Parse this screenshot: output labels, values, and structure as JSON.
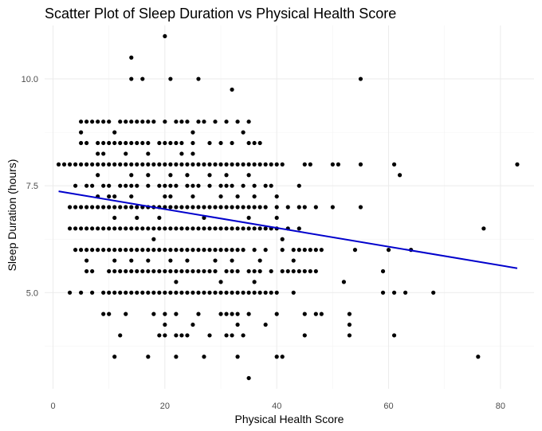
{
  "chart_data": {
    "type": "scatter",
    "title": "Scatter Plot of Sleep Duration vs Physical Health Score",
    "xlabel": "Physical Health Score",
    "ylabel": "Sleep Duration (hours)",
    "xlim": [
      -1.5,
      86
    ],
    "ylim": [
      2.75,
      11.25
    ],
    "x_ticks": [
      0,
      20,
      40,
      60,
      80
    ],
    "y_ticks": [
      5.0,
      7.5,
      10.0
    ],
    "y_tick_labels": [
      "5.0",
      "7.5",
      "10.0"
    ],
    "grid": true,
    "legend": "none",
    "point_color": "#000000",
    "trend_color": "#0000cc",
    "trend_line": {
      "x": [
        1,
        83
      ],
      "y": [
        7.37,
        5.57
      ]
    },
    "points": [
      [
        20,
        11
      ],
      [
        14,
        10.5
      ],
      [
        14,
        10
      ],
      [
        16,
        10
      ],
      [
        21,
        10
      ],
      [
        26,
        10
      ],
      [
        55,
        10
      ],
      [
        32,
        9.75
      ],
      [
        5,
        9
      ],
      [
        6,
        9
      ],
      [
        7,
        9
      ],
      [
        8,
        9
      ],
      [
        9,
        9
      ],
      [
        10,
        9
      ],
      [
        12,
        9
      ],
      [
        13,
        9
      ],
      [
        14,
        9
      ],
      [
        15,
        9
      ],
      [
        16,
        9
      ],
      [
        17,
        9
      ],
      [
        18,
        9
      ],
      [
        20,
        9
      ],
      [
        22,
        9
      ],
      [
        23,
        9
      ],
      [
        24,
        9
      ],
      [
        26,
        9
      ],
      [
        27,
        9
      ],
      [
        29,
        9
      ],
      [
        31,
        9
      ],
      [
        33,
        9
      ],
      [
        35,
        9
      ],
      [
        5,
        8.75
      ],
      [
        11,
        8.75
      ],
      [
        25,
        8.75
      ],
      [
        34,
        8.75
      ],
      [
        5,
        8.5
      ],
      [
        6,
        8.5
      ],
      [
        8,
        8.5
      ],
      [
        9,
        8.5
      ],
      [
        10,
        8.5
      ],
      [
        11,
        8.5
      ],
      [
        12,
        8.5
      ],
      [
        13,
        8.5
      ],
      [
        14,
        8.5
      ],
      [
        15,
        8.5
      ],
      [
        16,
        8.5
      ],
      [
        17,
        8.5
      ],
      [
        19,
        8.5
      ],
      [
        20,
        8.5
      ],
      [
        21,
        8.5
      ],
      [
        22,
        8.5
      ],
      [
        23,
        8.5
      ],
      [
        25,
        8.5
      ],
      [
        28,
        8.5
      ],
      [
        30,
        8.5
      ],
      [
        32,
        8.5
      ],
      [
        35,
        8.5
      ],
      [
        36,
        8.5
      ],
      [
        37,
        8.5
      ],
      [
        8,
        8.25
      ],
      [
        9,
        8.25
      ],
      [
        13,
        8.25
      ],
      [
        17,
        8.25
      ],
      [
        23,
        8.25
      ],
      [
        25,
        8.25
      ],
      [
        1,
        8
      ],
      [
        2,
        8
      ],
      [
        3,
        8
      ],
      [
        4,
        8
      ],
      [
        5,
        8
      ],
      [
        6,
        8
      ],
      [
        7,
        8
      ],
      [
        8,
        8
      ],
      [
        9,
        8
      ],
      [
        10,
        8
      ],
      [
        11,
        8
      ],
      [
        12,
        8
      ],
      [
        13,
        8
      ],
      [
        14,
        8
      ],
      [
        15,
        8
      ],
      [
        16,
        8
      ],
      [
        17,
        8
      ],
      [
        18,
        8
      ],
      [
        19,
        8
      ],
      [
        20,
        8
      ],
      [
        21,
        8
      ],
      [
        22,
        8
      ],
      [
        23,
        8
      ],
      [
        24,
        8
      ],
      [
        25,
        8
      ],
      [
        26,
        8
      ],
      [
        27,
        8
      ],
      [
        28,
        8
      ],
      [
        29,
        8
      ],
      [
        30,
        8
      ],
      [
        31,
        8
      ],
      [
        32,
        8
      ],
      [
        33,
        8
      ],
      [
        34,
        8
      ],
      [
        35,
        8
      ],
      [
        36,
        8
      ],
      [
        37,
        8
      ],
      [
        38,
        8
      ],
      [
        39,
        8
      ],
      [
        40,
        8
      ],
      [
        41,
        8
      ],
      [
        45,
        8
      ],
      [
        46,
        8
      ],
      [
        50,
        8
      ],
      [
        51,
        8
      ],
      [
        55,
        8
      ],
      [
        61,
        8
      ],
      [
        83,
        8
      ],
      [
        8,
        7.75
      ],
      [
        14,
        7.75
      ],
      [
        17,
        7.75
      ],
      [
        21,
        7.75
      ],
      [
        24,
        7.75
      ],
      [
        28,
        7.75
      ],
      [
        31,
        7.75
      ],
      [
        35,
        7.75
      ],
      [
        62,
        7.75
      ],
      [
        4,
        7.5
      ],
      [
        6,
        7.5
      ],
      [
        7,
        7.5
      ],
      [
        9,
        7.5
      ],
      [
        10,
        7.5
      ],
      [
        12,
        7.5
      ],
      [
        13,
        7.5
      ],
      [
        14,
        7.5
      ],
      [
        15,
        7.5
      ],
      [
        17,
        7.5
      ],
      [
        19,
        7.5
      ],
      [
        20,
        7.5
      ],
      [
        21,
        7.5
      ],
      [
        22,
        7.5
      ],
      [
        24,
        7.5
      ],
      [
        25,
        7.5
      ],
      [
        26,
        7.5
      ],
      [
        28,
        7.5
      ],
      [
        30,
        7.5
      ],
      [
        31,
        7.5
      ],
      [
        32,
        7.5
      ],
      [
        34,
        7.5
      ],
      [
        36,
        7.5
      ],
      [
        38,
        7.5
      ],
      [
        39,
        7.5
      ],
      [
        44,
        7.5
      ],
      [
        8,
        7.25
      ],
      [
        10,
        7.25
      ],
      [
        11,
        7.25
      ],
      [
        14,
        7.25
      ],
      [
        20,
        7.25
      ],
      [
        21,
        7.25
      ],
      [
        25,
        7.25
      ],
      [
        30,
        7.25
      ],
      [
        33,
        7.25
      ],
      [
        36,
        7.25
      ],
      [
        40,
        7.25
      ],
      [
        3,
        7
      ],
      [
        4,
        7
      ],
      [
        5,
        7
      ],
      [
        6,
        7
      ],
      [
        7,
        7
      ],
      [
        8,
        7
      ],
      [
        9,
        7
      ],
      [
        10,
        7
      ],
      [
        11,
        7
      ],
      [
        12,
        7
      ],
      [
        13,
        7
      ],
      [
        14,
        7
      ],
      [
        15,
        7
      ],
      [
        16,
        7
      ],
      [
        17,
        7
      ],
      [
        18,
        7
      ],
      [
        19,
        7
      ],
      [
        20,
        7
      ],
      [
        21,
        7
      ],
      [
        22,
        7
      ],
      [
        23,
        7
      ],
      [
        24,
        7
      ],
      [
        25,
        7
      ],
      [
        26,
        7
      ],
      [
        27,
        7
      ],
      [
        28,
        7
      ],
      [
        29,
        7
      ],
      [
        30,
        7
      ],
      [
        31,
        7
      ],
      [
        32,
        7
      ],
      [
        33,
        7
      ],
      [
        34,
        7
      ],
      [
        35,
        7
      ],
      [
        36,
        7
      ],
      [
        37,
        7
      ],
      [
        38,
        7
      ],
      [
        40,
        7
      ],
      [
        42,
        7
      ],
      [
        44,
        7
      ],
      [
        45,
        7
      ],
      [
        47,
        7
      ],
      [
        50,
        7
      ],
      [
        55,
        7
      ],
      [
        11,
        6.75
      ],
      [
        15,
        6.75
      ],
      [
        19,
        6.75
      ],
      [
        27,
        6.75
      ],
      [
        35,
        6.75
      ],
      [
        40,
        6.75
      ],
      [
        3,
        6.5
      ],
      [
        4,
        6.5
      ],
      [
        5,
        6.5
      ],
      [
        6,
        6.5
      ],
      [
        7,
        6.5
      ],
      [
        8,
        6.5
      ],
      [
        9,
        6.5
      ],
      [
        10,
        6.5
      ],
      [
        11,
        6.5
      ],
      [
        12,
        6.5
      ],
      [
        13,
        6.5
      ],
      [
        14,
        6.5
      ],
      [
        15,
        6.5
      ],
      [
        16,
        6.5
      ],
      [
        17,
        6.5
      ],
      [
        18,
        6.5
      ],
      [
        19,
        6.5
      ],
      [
        20,
        6.5
      ],
      [
        21,
        6.5
      ],
      [
        22,
        6.5
      ],
      [
        23,
        6.5
      ],
      [
        24,
        6.5
      ],
      [
        25,
        6.5
      ],
      [
        26,
        6.5
      ],
      [
        27,
        6.5
      ],
      [
        28,
        6.5
      ],
      [
        29,
        6.5
      ],
      [
        30,
        6.5
      ],
      [
        31,
        6.5
      ],
      [
        32,
        6.5
      ],
      [
        33,
        6.5
      ],
      [
        34,
        6.5
      ],
      [
        35,
        6.5
      ],
      [
        36,
        6.5
      ],
      [
        37,
        6.5
      ],
      [
        38,
        6.5
      ],
      [
        39,
        6.5
      ],
      [
        40,
        6.5
      ],
      [
        42,
        6.5
      ],
      [
        44,
        6.5
      ],
      [
        77,
        6.5
      ],
      [
        18,
        6.25
      ],
      [
        41,
        6.25
      ],
      [
        4,
        6
      ],
      [
        5,
        6
      ],
      [
        6,
        6
      ],
      [
        7,
        6
      ],
      [
        8,
        6
      ],
      [
        9,
        6
      ],
      [
        10,
        6
      ],
      [
        11,
        6
      ],
      [
        12,
        6
      ],
      [
        13,
        6
      ],
      [
        14,
        6
      ],
      [
        15,
        6
      ],
      [
        16,
        6
      ],
      [
        17,
        6
      ],
      [
        18,
        6
      ],
      [
        19,
        6
      ],
      [
        20,
        6
      ],
      [
        21,
        6
      ],
      [
        22,
        6
      ],
      [
        23,
        6
      ],
      [
        24,
        6
      ],
      [
        25,
        6
      ],
      [
        26,
        6
      ],
      [
        27,
        6
      ],
      [
        28,
        6
      ],
      [
        29,
        6
      ],
      [
        30,
        6
      ],
      [
        31,
        6
      ],
      [
        32,
        6
      ],
      [
        33,
        6
      ],
      [
        34,
        6
      ],
      [
        36,
        6
      ],
      [
        38,
        6
      ],
      [
        41,
        6
      ],
      [
        43,
        6
      ],
      [
        44,
        6
      ],
      [
        45,
        6
      ],
      [
        46,
        6
      ],
      [
        47,
        6
      ],
      [
        48,
        6
      ],
      [
        54,
        6
      ],
      [
        60,
        6
      ],
      [
        64,
        6
      ],
      [
        6,
        5.75
      ],
      [
        11,
        5.75
      ],
      [
        14,
        5.75
      ],
      [
        17,
        5.75
      ],
      [
        21,
        5.75
      ],
      [
        24,
        5.75
      ],
      [
        29,
        5.75
      ],
      [
        32,
        5.75
      ],
      [
        37,
        5.75
      ],
      [
        43,
        5.75
      ],
      [
        6,
        5.5
      ],
      [
        7,
        5.5
      ],
      [
        10,
        5.5
      ],
      [
        11,
        5.5
      ],
      [
        12,
        5.5
      ],
      [
        13,
        5.5
      ],
      [
        14,
        5.5
      ],
      [
        15,
        5.5
      ],
      [
        16,
        5.5
      ],
      [
        17,
        5.5
      ],
      [
        18,
        5.5
      ],
      [
        19,
        5.5
      ],
      [
        20,
        5.5
      ],
      [
        21,
        5.5
      ],
      [
        22,
        5.5
      ],
      [
        23,
        5.5
      ],
      [
        24,
        5.5
      ],
      [
        25,
        5.5
      ],
      [
        26,
        5.5
      ],
      [
        27,
        5.5
      ],
      [
        28,
        5.5
      ],
      [
        29,
        5.5
      ],
      [
        31,
        5.5
      ],
      [
        32,
        5.5
      ],
      [
        33,
        5.5
      ],
      [
        35,
        5.5
      ],
      [
        36,
        5.5
      ],
      [
        37,
        5.5
      ],
      [
        39,
        5.5
      ],
      [
        41,
        5.5
      ],
      [
        42,
        5.5
      ],
      [
        43,
        5.5
      ],
      [
        44,
        5.5
      ],
      [
        45,
        5.5
      ],
      [
        46,
        5.5
      ],
      [
        47,
        5.5
      ],
      [
        59,
        5.5
      ],
      [
        22,
        5.25
      ],
      [
        30,
        5.25
      ],
      [
        36,
        5.25
      ],
      [
        52,
        5.25
      ],
      [
        3,
        5
      ],
      [
        5,
        5
      ],
      [
        7,
        5
      ],
      [
        9,
        5
      ],
      [
        10,
        5
      ],
      [
        11,
        5
      ],
      [
        12,
        5
      ],
      [
        13,
        5
      ],
      [
        14,
        5
      ],
      [
        15,
        5
      ],
      [
        16,
        5
      ],
      [
        17,
        5
      ],
      [
        18,
        5
      ],
      [
        19,
        5
      ],
      [
        20,
        5
      ],
      [
        21,
        5
      ],
      [
        22,
        5
      ],
      [
        23,
        5
      ],
      [
        24,
        5
      ],
      [
        25,
        5
      ],
      [
        26,
        5
      ],
      [
        27,
        5
      ],
      [
        28,
        5
      ],
      [
        29,
        5
      ],
      [
        30,
        5
      ],
      [
        31,
        5
      ],
      [
        32,
        5
      ],
      [
        33,
        5
      ],
      [
        34,
        5
      ],
      [
        35,
        5
      ],
      [
        36,
        5
      ],
      [
        37,
        5
      ],
      [
        38,
        5
      ],
      [
        39,
        5
      ],
      [
        40,
        5
      ],
      [
        43,
        5
      ],
      [
        59,
        5
      ],
      [
        61,
        5
      ],
      [
        63,
        5
      ],
      [
        68,
        5
      ],
      [
        9,
        4.5
      ],
      [
        10,
        4.5
      ],
      [
        13,
        4.5
      ],
      [
        18,
        4.5
      ],
      [
        20,
        4.5
      ],
      [
        22,
        4.5
      ],
      [
        26,
        4.5
      ],
      [
        30,
        4.5
      ],
      [
        31,
        4.5
      ],
      [
        32,
        4.5
      ],
      [
        33,
        4.5
      ],
      [
        35,
        4.5
      ],
      [
        40,
        4.5
      ],
      [
        45,
        4.5
      ],
      [
        47,
        4.5
      ],
      [
        48,
        4.5
      ],
      [
        53,
        4.5
      ],
      [
        20,
        4.25
      ],
      [
        25,
        4.25
      ],
      [
        33,
        4.25
      ],
      [
        38,
        4.25
      ],
      [
        53,
        4.25
      ],
      [
        12,
        4
      ],
      [
        19,
        4
      ],
      [
        20,
        4
      ],
      [
        22,
        4
      ],
      [
        23,
        4
      ],
      [
        24,
        4
      ],
      [
        28,
        4
      ],
      [
        31,
        4
      ],
      [
        32,
        4
      ],
      [
        34,
        4
      ],
      [
        45,
        4
      ],
      [
        53,
        4
      ],
      [
        61,
        4
      ],
      [
        11,
        3.5
      ],
      [
        17,
        3.5
      ],
      [
        22,
        3.5
      ],
      [
        27,
        3.5
      ],
      [
        33,
        3.5
      ],
      [
        40,
        3.5
      ],
      [
        41,
        3.5
      ],
      [
        76,
        3.5
      ],
      [
        35,
        3
      ]
    ]
  }
}
